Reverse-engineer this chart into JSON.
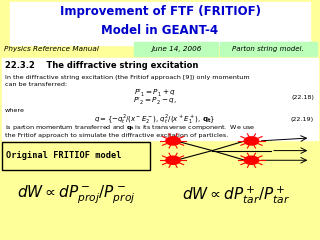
{
  "title_line1": "Improvement of FTF (FRITIOF)",
  "title_line2": "Model in GEANT-4",
  "title_color": "#0000cc",
  "bg_color": "#ffff99",
  "ref_manual": "Physics Reference Manual",
  "ref_date": "June 14, 2006",
  "ref_parton": "Parton string model.",
  "section": "22.3.2    The diffractive string excitation",
  "body1a": "In the diffractive string excitation (the Fritiof approach [9]) only momentum",
  "body1b": "can be transferred:",
  "eq_num1": "(22.18)",
  "eq_num2": "(22.19)",
  "where_text": "where",
  "body2a": "is parton momentum transferred and",
  "body2b": "is its transverse component.  We use",
  "body2c": "the Fritiof approach to simulate the diffractive excitation of particles.",
  "orig_label": "Original FRITIOF model",
  "formula_left": "$dW \\propto dP^-_{proj}/P^-_{proj}$",
  "formula_right": "$dW \\propto dP^+_{tar}/P^+_{tar}$"
}
